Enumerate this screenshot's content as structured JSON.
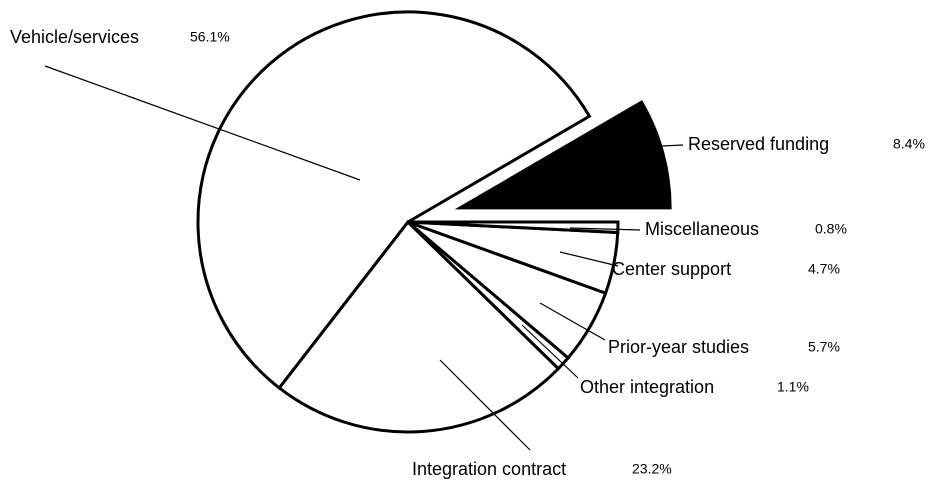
{
  "chart_data": {
    "type": "pie",
    "categories": [
      "Reserved funding",
      "Vehicle/services",
      "Integration contract",
      "Other integration",
      "Prior-year studies",
      "Center support",
      "Miscellaneous"
    ],
    "values": [
      8.4,
      56.1,
      23.2,
      1.1,
      5.7,
      4.7,
      0.8
    ],
    "value_labels": [
      "8.4%",
      "56.1%",
      "23.2%",
      "1.1%",
      "5.7%",
      "4.7%",
      "0.8%"
    ],
    "colors": [
      "#000000",
      "#ffffff",
      "#ffffff",
      "#ffffff",
      "#ffffff",
      "#ffffff",
      "#ffffff"
    ],
    "exploded": [
      "Reserved funding"
    ]
  }
}
